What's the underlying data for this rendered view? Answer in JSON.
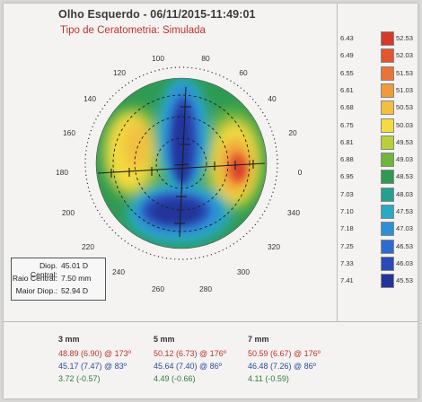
{
  "header": {
    "title": "Olho Esquerdo - 06/11/2015-11:49:01",
    "subtitle": "Tipo de Ceratometria: Simulada"
  },
  "scale": [
    {
      "mm": "6.43",
      "diop": "52.53",
      "color": "#d63a2b"
    },
    {
      "mm": "6.49",
      "diop": "52.03",
      "color": "#e3552e"
    },
    {
      "mm": "6.55",
      "diop": "51.53",
      "color": "#ea7434"
    },
    {
      "mm": "6.61",
      "diop": "51.03",
      "color": "#f09a3b"
    },
    {
      "mm": "6.68",
      "diop": "50.53",
      "color": "#f3bf3f"
    },
    {
      "mm": "6.75",
      "diop": "50.03",
      "color": "#f2dc3f"
    },
    {
      "mm": "6.81",
      "diop": "49.53",
      "color": "#b9cf3a"
    },
    {
      "mm": "6.88",
      "diop": "49.03",
      "color": "#6fb63c"
    },
    {
      "mm": "6.95",
      "diop": "48.53",
      "color": "#2f9a52"
    },
    {
      "mm": "7.03",
      "diop": "48.03",
      "color": "#26a08e"
    },
    {
      "mm": "7.10",
      "diop": "47.53",
      "color": "#28a9c4"
    },
    {
      "mm": "7.18",
      "diop": "47.03",
      "color": "#2d8fd6"
    },
    {
      "mm": "7.25",
      "diop": "46.53",
      "color": "#2e6bd0"
    },
    {
      "mm": "7.33",
      "diop": "46.03",
      "color": "#2a4bb8"
    },
    {
      "mm": "7.41",
      "diop": "45.53",
      "color": "#22349a"
    }
  ],
  "axis_labels": [
    "100",
    "80",
    "120",
    "60",
    "140",
    "40",
    "160",
    "20",
    "180",
    "0",
    "200",
    "340",
    "220",
    "320",
    "240",
    "300",
    "260",
    "280"
  ],
  "info": {
    "central_power_label": "Diop. Central:",
    "central_power_value": "45.01 D",
    "central_radius_label": "Raio Central:",
    "central_radius_value": "7.50 mm",
    "max_power_label": "Maior Diop.:",
    "max_power_value": "52.94 D"
  },
  "zones": [
    {
      "label": "3 mm",
      "steep": "48.89 (6.90) @ 173º",
      "flat": "45.17 (7.47) @ 83º",
      "cyl": "3.72 (-0.57)"
    },
    {
      "label": "5 mm",
      "steep": "50.12 (6.73) @ 176º",
      "flat": "45.64 (7.40) @ 86º",
      "cyl": "4.49 (-0.66)"
    },
    {
      "label": "7 mm",
      "steep": "50.59 (6.67) @ 176º",
      "flat": "46.48 (7.26) @ 86º",
      "cyl": "4.11 (-0.59)"
    }
  ]
}
